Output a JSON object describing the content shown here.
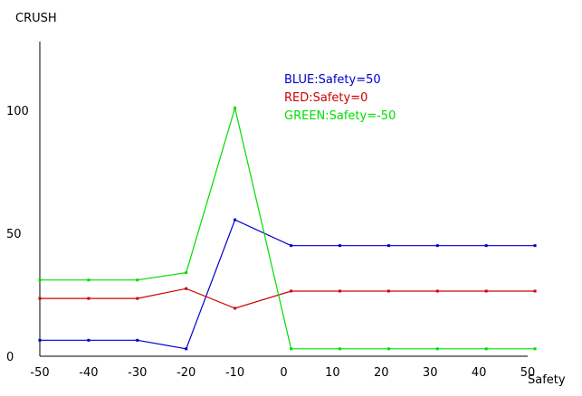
{
  "chart_data": {
    "type": "line",
    "ylabel": "CRUSH",
    "xlabel": "Safety",
    "xlim": [
      -50,
      50
    ],
    "ylim": [
      0,
      128
    ],
    "x_ticks": [
      "-50",
      "-40",
      "-30",
      "-20",
      "-10",
      "0",
      "10",
      "20",
      "30",
      "40",
      "50"
    ],
    "y_ticks": [
      {
        "label": "0",
        "value": 0
      },
      {
        "label": "50",
        "value": 50
      },
      {
        "label": "100",
        "value": 100
      }
    ],
    "grid": false,
    "legend_position": "top-right",
    "x": [
      -50,
      -40,
      -30,
      -20,
      -10,
      1.5,
      11.5,
      21.5,
      31.5,
      41.5,
      51.5
    ],
    "series": [
      {
        "name": "BLUE:Safety=50",
        "color": "#0000cc",
        "values": [
          6.5,
          6.5,
          6.5,
          3.0,
          55.5,
          45.0,
          45.0,
          45.0,
          45.0,
          45.0,
          45.0
        ]
      },
      {
        "name": "RED:Safety=0",
        "color": "#cc0000",
        "values": [
          23.5,
          23.5,
          23.5,
          27.5,
          19.5,
          26.5,
          26.5,
          26.5,
          26.5,
          26.5,
          26.5
        ]
      },
      {
        "name": "GREEN:Safety=-50",
        "color": "#00dd00",
        "values": [
          31.0,
          31.0,
          31.0,
          34.0,
          101.0,
          3.0,
          3.0,
          3.0,
          3.0,
          3.0,
          3.0
        ]
      }
    ]
  }
}
